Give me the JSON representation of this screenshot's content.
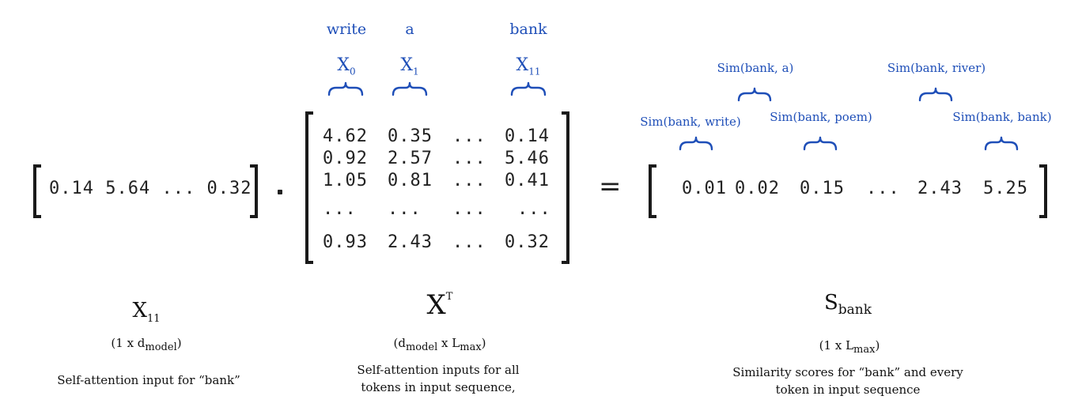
{
  "tokens": {
    "t0": {
      "word": "write",
      "sym": "X",
      "sub": "0"
    },
    "t1": {
      "word": "a",
      "sym": "X",
      "sub": "1"
    },
    "t11": {
      "word": "bank",
      "sym": "X",
      "sub": "11"
    }
  },
  "query_vector": [
    "0.14",
    "5.64",
    "...",
    "0.32"
  ],
  "matrix_rows": [
    [
      "4.62",
      "0.35",
      "...",
      "0.14"
    ],
    [
      "0.92",
      "2.57",
      "...",
      "5.46"
    ],
    [
      "1.05",
      "0.81",
      "...",
      "0.41"
    ],
    [
      "...",
      "...",
      "...",
      "..."
    ],
    [
      "0.93",
      "2.43",
      "...",
      "0.32"
    ]
  ],
  "result_vector": [
    "0.01",
    "0.02",
    "0.15",
    "...",
    "2.43",
    "5.25"
  ],
  "similarity_labels": {
    "write": "Sim(bank, write)",
    "a": "Sim(bank, a)",
    "poem": "Sim(bank, poem)",
    "river": "Sim(bank, river)",
    "bank": "Sim(bank, bank)"
  },
  "operator": "=",
  "labels": {
    "left": {
      "sym": "X",
      "sub": "11",
      "dims_pre": "(1 x d",
      "dims_sub": "model",
      "dims_post": ")",
      "desc": "Self-attention input for “bank”"
    },
    "middle": {
      "sym": "X",
      "sup": "T",
      "dims_pre": "(d",
      "dims_sub": "model",
      "dims_mid": " x L",
      "dims_sub2": "max",
      "dims_post": ")",
      "desc1": "Self-attention inputs  for all",
      "desc2": "tokens in input sequence,"
    },
    "right": {
      "sym": "S",
      "sub": "bank",
      "dims_pre": "(1 x L",
      "dims_sub": "max",
      "dims_post": ")",
      "desc1": "Similarity scores for “bank” and every",
      "desc2": "token in input sequence"
    }
  },
  "colors": {
    "accent": "#1f4fb8",
    "text": "#222222"
  }
}
